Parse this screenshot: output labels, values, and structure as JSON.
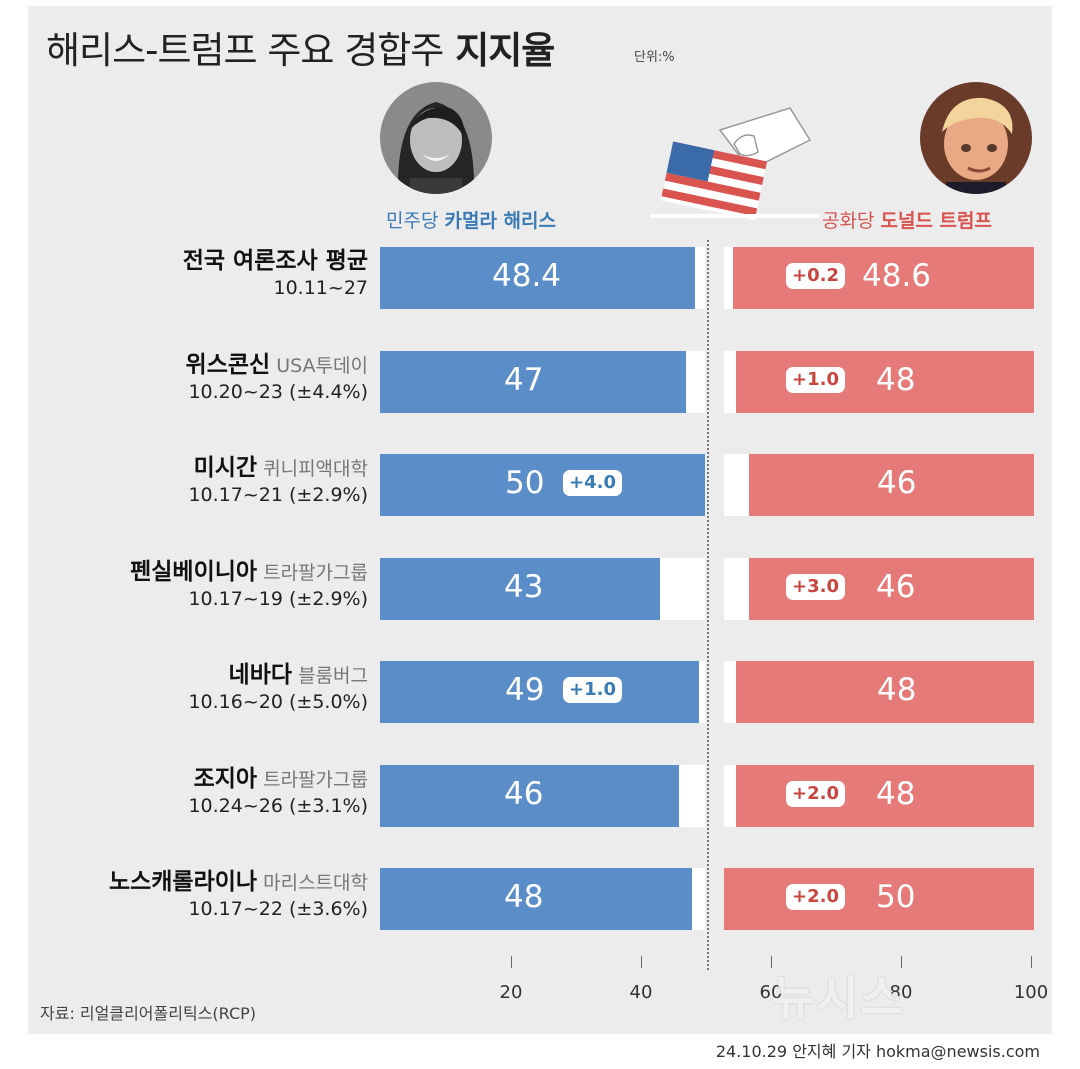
{
  "header": {
    "title_main": "해리스-트럼프 주요 경합주",
    "title_bold": "지지율",
    "unit": "단위:%"
  },
  "candidates": {
    "harris": {
      "party": "민주당",
      "name": "카멀라 해리스"
    },
    "trump": {
      "party": "공화당",
      "name": "도널드 트럼프"
    }
  },
  "colors": {
    "harris": "#5b8ec9",
    "trump": "#e57a78",
    "background": "#ececec"
  },
  "icons": [
    "harris-portrait",
    "ballot-flag-icon",
    "trump-portrait"
  ],
  "chart_data": {
    "type": "bar",
    "title": "해리스-트럼프 주요 경합주 지지율",
    "unit": "%",
    "xlim": [
      0,
      100
    ],
    "ticks": [
      20,
      40,
      60,
      80,
      100
    ],
    "series": [
      {
        "name": "민주당 카멀라 해리스",
        "values": [
          48.4,
          47,
          50,
          43,
          49,
          46,
          48
        ]
      },
      {
        "name": "공화당 도널드 트럼프",
        "values": [
          48.6,
          48,
          46,
          46,
          48,
          48,
          50
        ]
      }
    ],
    "rows": [
      {
        "region": "전국 여론조사 평균",
        "pollster": "",
        "dates": "10.11~27",
        "harris": 48.4,
        "harris_str": "48.4",
        "trump": 48.6,
        "trump_str": "48.6",
        "lead": "+0.2",
        "leader": "trump"
      },
      {
        "region": "위스콘신",
        "pollster": "USA투데이",
        "dates": "10.20~23 (±4.4%)",
        "harris": 47,
        "harris_str": "47",
        "trump": 48,
        "trump_str": "48",
        "lead": "+1.0",
        "leader": "trump"
      },
      {
        "region": "미시간",
        "pollster": "퀴니피액대학",
        "dates": "10.17~21 (±2.9%)",
        "harris": 50,
        "harris_str": "50",
        "trump": 46,
        "trump_str": "46",
        "lead": "+4.0",
        "leader": "harris"
      },
      {
        "region": "펜실베이니아",
        "pollster": "트라팔가그룹",
        "dates": "10.17~19 (±2.9%)",
        "harris": 43,
        "harris_str": "43",
        "trump": 46,
        "trump_str": "46",
        "lead": "+3.0",
        "leader": "trump"
      },
      {
        "region": "네바다",
        "pollster": "블룸버그",
        "dates": "10.16~20 (±5.0%)",
        "harris": 49,
        "harris_str": "49",
        "trump": 48,
        "trump_str": "48",
        "lead": "+1.0",
        "leader": "harris"
      },
      {
        "region": "조지아",
        "pollster": "트라팔가그룹",
        "dates": "10.24~26 (±3.1%)",
        "harris": 46,
        "harris_str": "46",
        "trump": 48,
        "trump_str": "48",
        "lead": "+2.0",
        "leader": "trump"
      },
      {
        "region": "노스캐롤라이나",
        "pollster": "마리스트대학",
        "dates": "10.17~22 (±3.6%)",
        "harris": 48,
        "harris_str": "48",
        "trump": 50,
        "trump_str": "50",
        "lead": "+2.0",
        "leader": "trump"
      }
    ]
  },
  "footer": {
    "source": "자료: 리얼클리어폴리틱스(RCP)",
    "credit": "24.10.29 안지혜 기자 hokma@newsis.com",
    "watermark": "뉴시스"
  }
}
